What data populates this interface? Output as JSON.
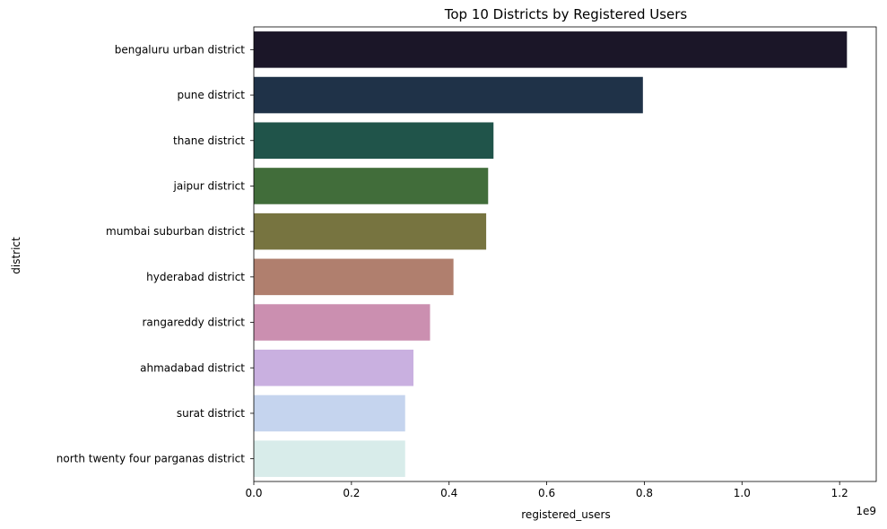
{
  "chart_data": {
    "type": "bar",
    "orientation": "horizontal",
    "title": "Top 10 Districts by Registered Users",
    "xlabel": "registered_users",
    "ylabel": "district",
    "x_offset_text": "1e9",
    "xlim": [
      0,
      1.275
    ],
    "xticks": [
      0.0,
      0.2,
      0.4,
      0.6,
      0.8,
      1.0,
      1.2
    ],
    "xtick_labels": [
      "0.0",
      "0.2",
      "0.4",
      "0.6",
      "0.8",
      "1.0",
      "1.2"
    ],
    "grid": false,
    "categories": [
      "bengaluru urban district",
      "pune district",
      "thane district",
      "jaipur district",
      "mumbai suburban district",
      "hyderabad district",
      "rangareddy district",
      "ahmadabad district",
      "surat district",
      "north twenty four parganas district"
    ],
    "values": [
      1.215,
      0.797,
      0.491,
      0.48,
      0.476,
      0.409,
      0.361,
      0.327,
      0.31,
      0.31
    ],
    "colors": [
      "#1b1628",
      "#1f3248",
      "#20544a",
      "#416d3a",
      "#777440",
      "#b07f6e",
      "#cb8fb0",
      "#c9b0e0",
      "#c5d4ee",
      "#d8ecea"
    ]
  }
}
